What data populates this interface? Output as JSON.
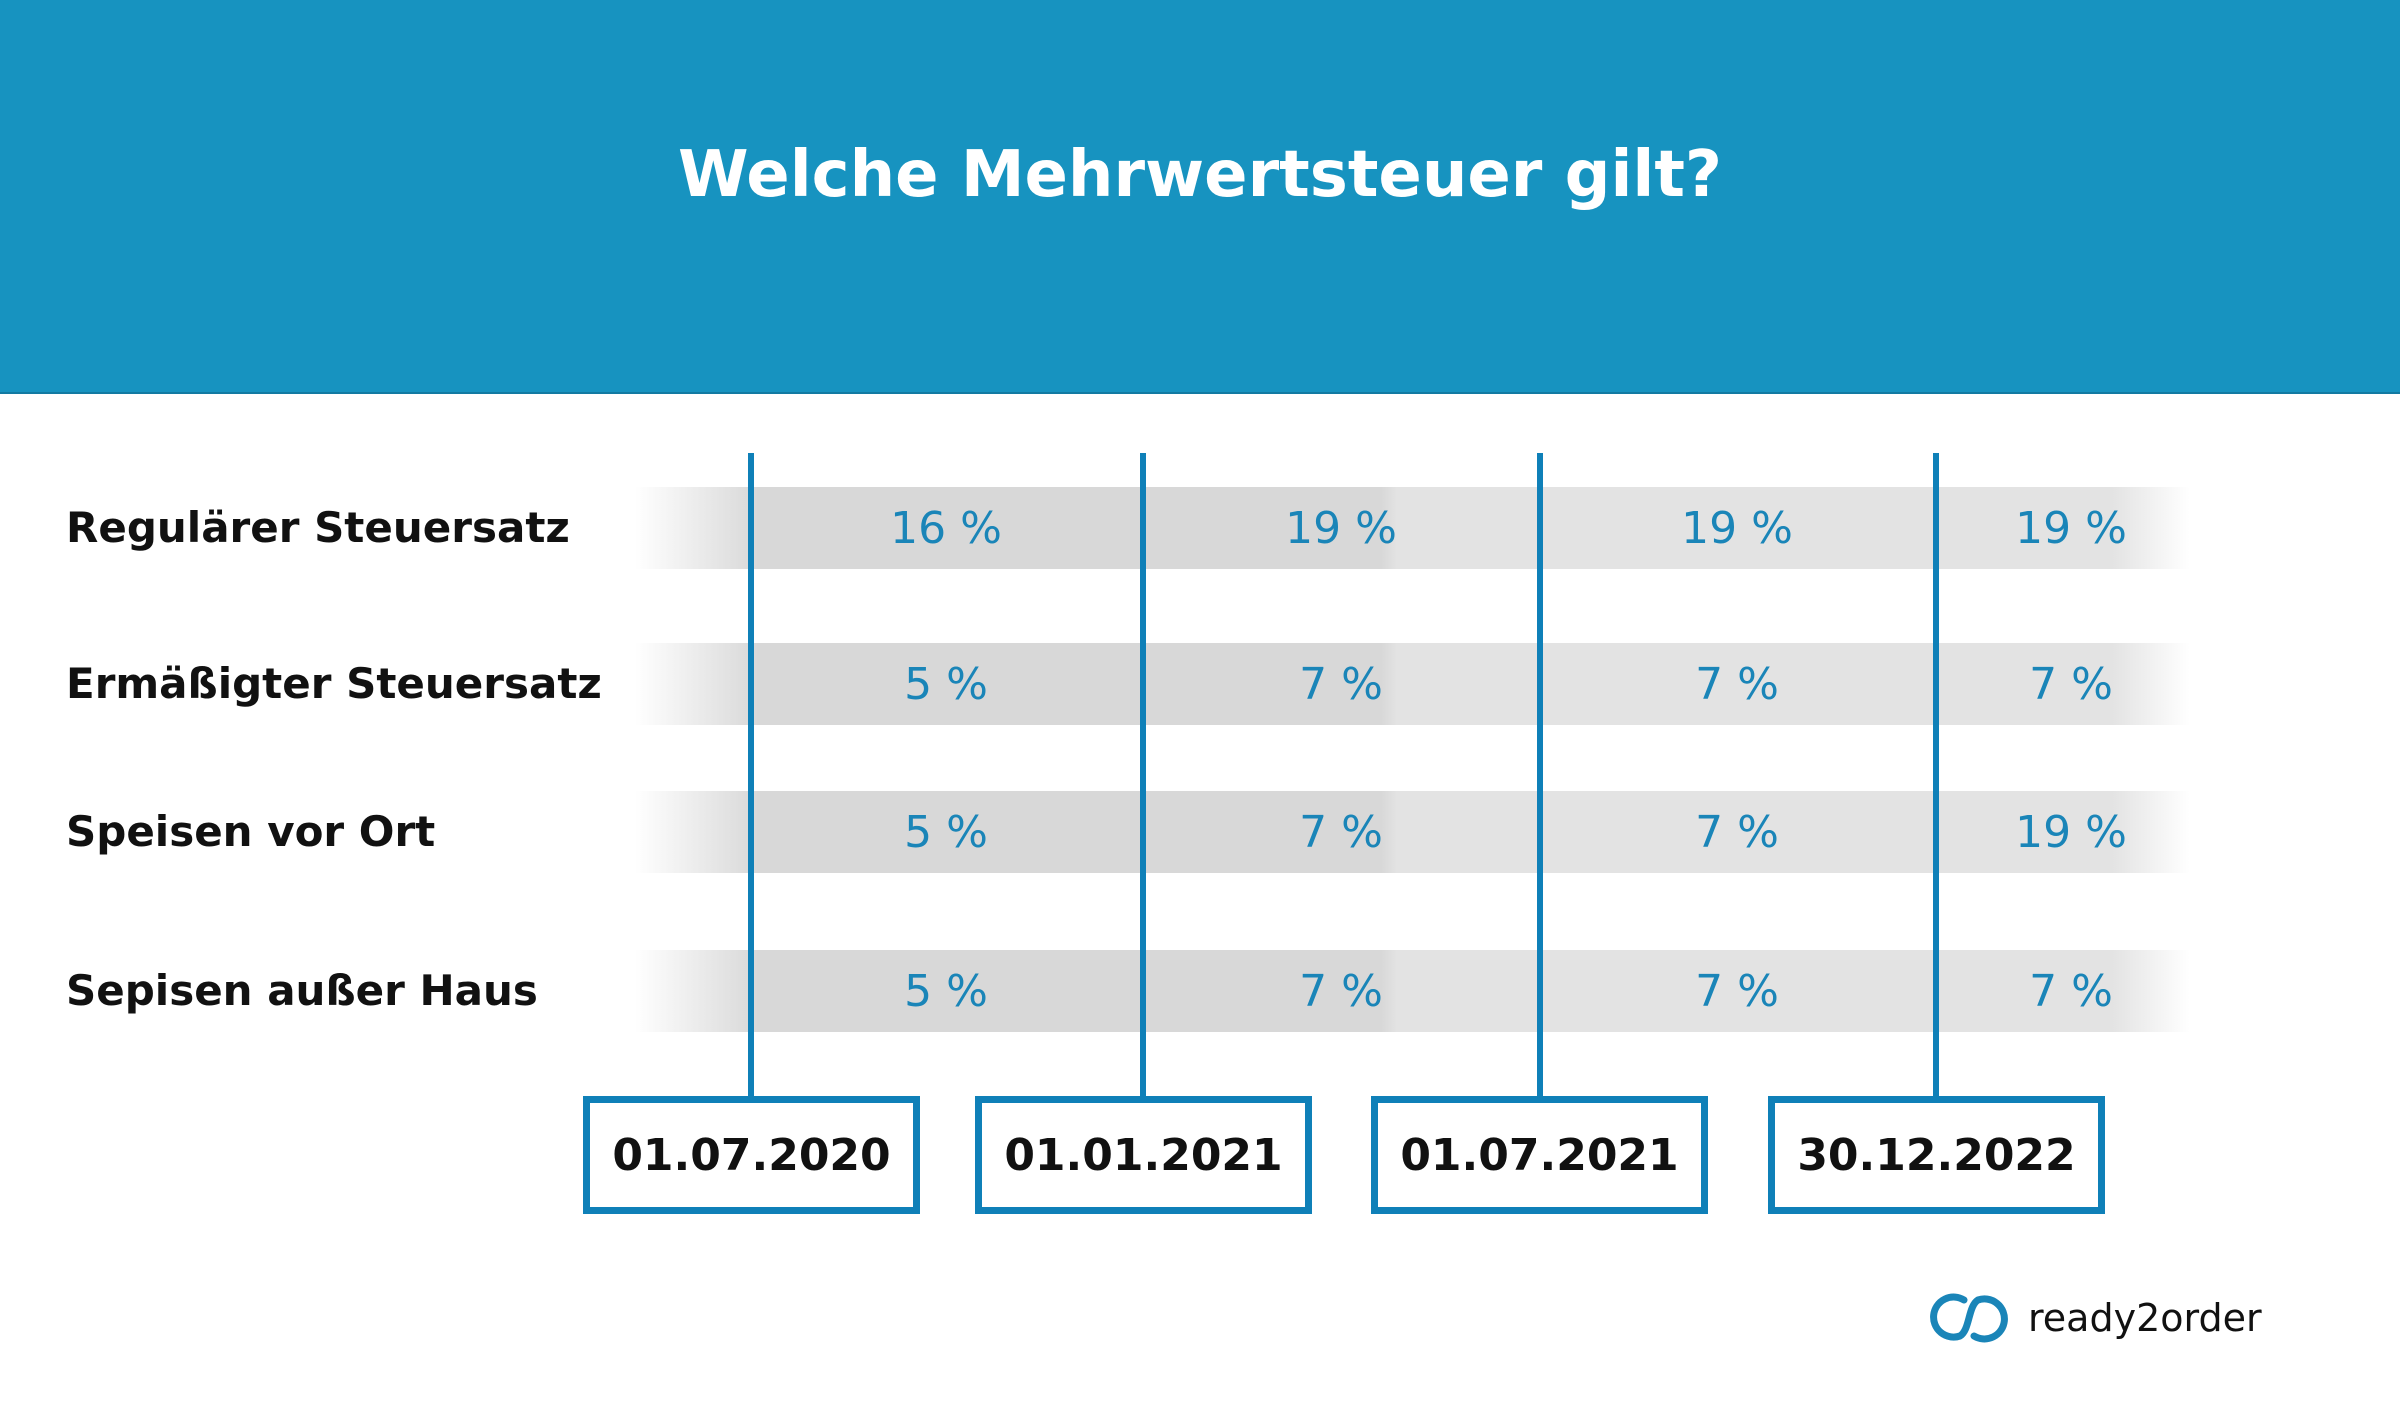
{
  "header": {
    "title": "Welche Mehrwertsteuer gilt?"
  },
  "rows": [
    {
      "label": "Regulärer Steuersatz",
      "values": [
        "16 %",
        "19 %",
        "19 %",
        "19 %"
      ]
    },
    {
      "label": "Ermäßigter Steuersatz",
      "values": [
        "5 %",
        "7 %",
        "7 %",
        "7 %"
      ]
    },
    {
      "label": "Speisen vor Ort",
      "values": [
        "5 %",
        "7 %",
        "7 %",
        "19 %"
      ]
    },
    {
      "label": "Sepisen außer Haus",
      "values": [
        "5 %",
        "7 %",
        "7 %",
        "7 %"
      ]
    }
  ],
  "dates": [
    "01.07.2020",
    "01.01.2021",
    "01.07.2021",
    "30.12.2022"
  ],
  "logo": {
    "text": "ready2order",
    "icon": "ready2order-logo-icon"
  },
  "colors": {
    "header": "#1793c0",
    "accent": "#0f80b8",
    "value_text": "#1a85b8"
  }
}
